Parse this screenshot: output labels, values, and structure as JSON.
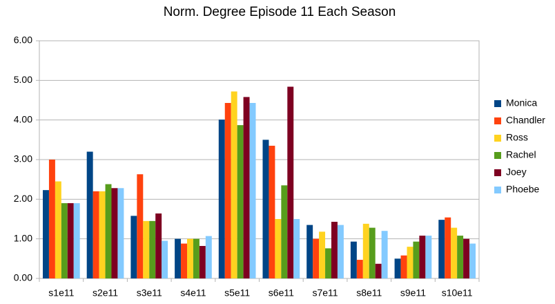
{
  "chart_data": {
    "type": "bar",
    "title": "Norm. Degree Episode 11 Each Season",
    "categories": [
      "s1e11",
      "s2e11",
      "s3e11",
      "s4e11",
      "s5e11",
      "s6e11",
      "s7e11",
      "s8e11",
      "s9e11",
      "s10e11"
    ],
    "series": [
      {
        "name": "Monica",
        "color": "#004586",
        "values": [
          2.23,
          3.2,
          1.58,
          1.0,
          4.01,
          3.5,
          1.35,
          0.93,
          0.5,
          1.48
        ]
      },
      {
        "name": "Chandler",
        "color": "#ff420e",
        "values": [
          3.0,
          2.2,
          2.63,
          0.88,
          4.43,
          3.35,
          1.0,
          0.47,
          0.58,
          1.54
        ]
      },
      {
        "name": "Ross",
        "color": "#ffd320",
        "values": [
          2.45,
          2.2,
          1.45,
          1.0,
          4.72,
          1.5,
          1.18,
          1.38,
          0.8,
          1.28
        ]
      },
      {
        "name": "Rachel",
        "color": "#579d1c",
        "values": [
          1.9,
          2.38,
          1.45,
          1.0,
          3.87,
          2.35,
          0.76,
          1.28,
          0.93,
          1.08
        ]
      },
      {
        "name": "Joey",
        "color": "#7e0021",
        "values": [
          1.9,
          2.28,
          1.64,
          0.82,
          4.58,
          4.84,
          1.43,
          0.37,
          1.08,
          1.0
        ]
      },
      {
        "name": "Phoebe",
        "color": "#83caff",
        "values": [
          1.9,
          2.28,
          0.95,
          1.07,
          4.43,
          1.5,
          1.35,
          1.2,
          1.08,
          0.88
        ]
      }
    ],
    "ylim": [
      0,
      6
    ],
    "yticks": [
      {
        "value": 0,
        "label": "0.00"
      },
      {
        "value": 1,
        "label": "1.00"
      },
      {
        "value": 2,
        "label": "2.00"
      },
      {
        "value": 3,
        "label": "3.00"
      },
      {
        "value": 4,
        "label": "4.00"
      },
      {
        "value": 5,
        "label": "5.00"
      },
      {
        "value": 6,
        "label": "6.00"
      }
    ],
    "grid": true,
    "legend": "right"
  }
}
